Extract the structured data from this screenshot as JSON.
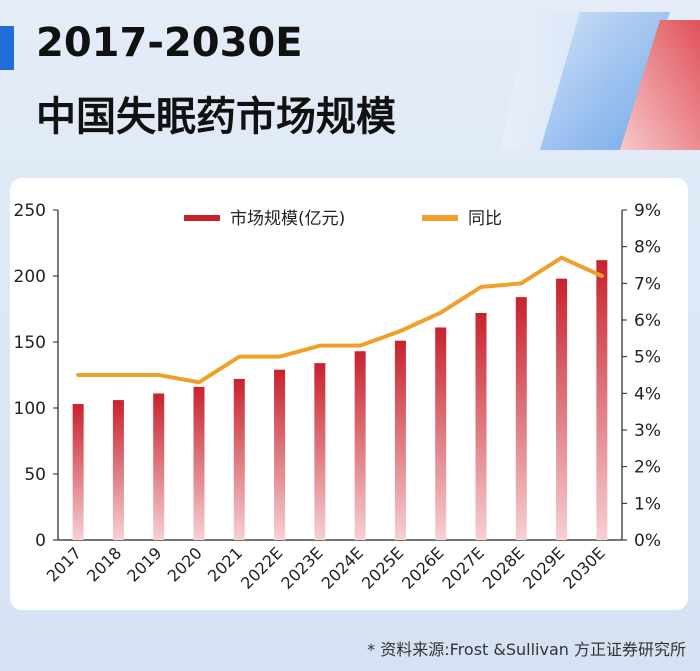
{
  "header": {
    "title_line1": "2017-2030E",
    "title_line2": "中国失眠药市场规模"
  },
  "footer": {
    "source": "* 资料来源:Frost &Sullivan  方正证券研究所"
  },
  "colors": {
    "bar_top": "#c8222d",
    "bar_bottom": "#f6d0d3",
    "line": "#f0a02a",
    "accent": "#1e6fd9"
  },
  "chart_data": {
    "type": "bar",
    "title": "2017-2030E 中国失眠药市场规模",
    "categories": [
      "2017",
      "2018",
      "2019",
      "2020",
      "2021",
      "2022E",
      "2023E",
      "2024E",
      "2025E",
      "2026E",
      "2027E",
      "2028E",
      "2029E",
      "2030E"
    ],
    "series": [
      {
        "name": "市场规模(亿元)",
        "type": "bar",
        "axis": "left",
        "values": [
          103,
          106,
          111,
          116,
          122,
          129,
          134,
          143,
          151,
          161,
          172,
          184,
          198,
          212
        ]
      },
      {
        "name": "同比",
        "type": "line",
        "axis": "right",
        "values": [
          4.5,
          4.5,
          4.5,
          4.3,
          5.0,
          5.0,
          5.3,
          5.3,
          5.7,
          6.2,
          6.9,
          7.0,
          7.7,
          7.2
        ]
      }
    ],
    "y_left": {
      "ylim": [
        0,
        250
      ],
      "ticks": [
        "0",
        "50",
        "100",
        "150",
        "200",
        "250"
      ]
    },
    "y_right": {
      "ylim": [
        0,
        9
      ],
      "ticks": [
        "0%",
        "1%",
        "2%",
        "3%",
        "4%",
        "5%",
        "6%",
        "7%",
        "8%",
        "9%"
      ]
    },
    "legend_position": "top-center",
    "grid": false
  }
}
